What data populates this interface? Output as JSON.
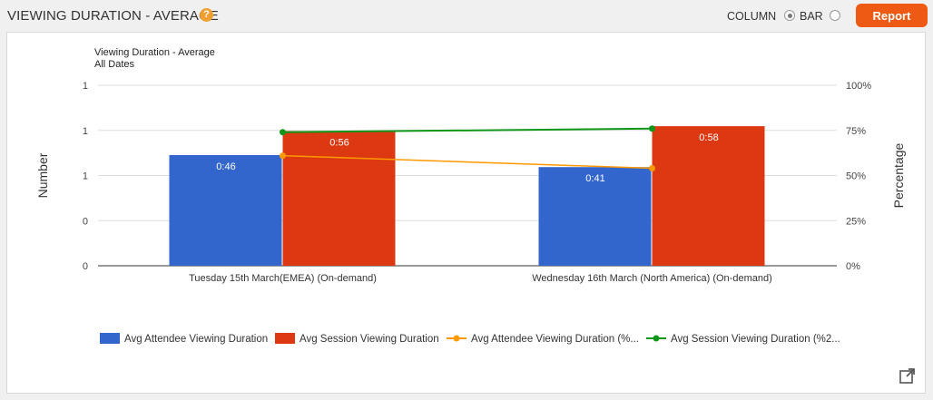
{
  "header": {
    "title": "VIEWING DURATION - AVERAGE",
    "help_icon": "question-circle-icon",
    "column_label": "COLUMN",
    "bar_label": "BAR",
    "selected": "COLUMN",
    "report_label": "Report"
  },
  "chart_title": {
    "line1": "Viewing Duration - Average",
    "line2": "All Dates"
  },
  "chart_data": {
    "type": "bar",
    "categories": [
      "Tuesday 15th March(EMEA) (On-demand)",
      "Wednesday 16th March (North America) (On-demand)"
    ],
    "ylabel": "Number",
    "y2label": "Percentage",
    "y_ticks": [
      "1",
      "1",
      "1",
      "0",
      "0"
    ],
    "y2_ticks": [
      "100%",
      "75%",
      "50%",
      "25%",
      "0%"
    ],
    "y2lim": [
      0,
      100
    ],
    "grid": true,
    "legend_position": "bottom",
    "bar_series": [
      {
        "name": "Avg Attendee Viewing Duration",
        "color": "#3366cc",
        "values": [
          46,
          41
        ],
        "labels": [
          "0:46",
          "0:41"
        ]
      },
      {
        "name": "Avg Session Viewing Duration",
        "color": "#dc3912",
        "values": [
          56,
          58
        ],
        "labels": [
          "0:56",
          "0:58"
        ]
      }
    ],
    "bar_ylim": [
      0,
      75
    ],
    "line_series": [
      {
        "name": "Avg Attendee Viewing Duration (%...",
        "color": "#ff9900",
        "values": [
          61,
          54
        ]
      },
      {
        "name": "Avg Session Viewing Duration (%2...",
        "color": "#109618",
        "values": [
          74,
          76
        ]
      }
    ]
  },
  "export_icon": "external-link-icon"
}
